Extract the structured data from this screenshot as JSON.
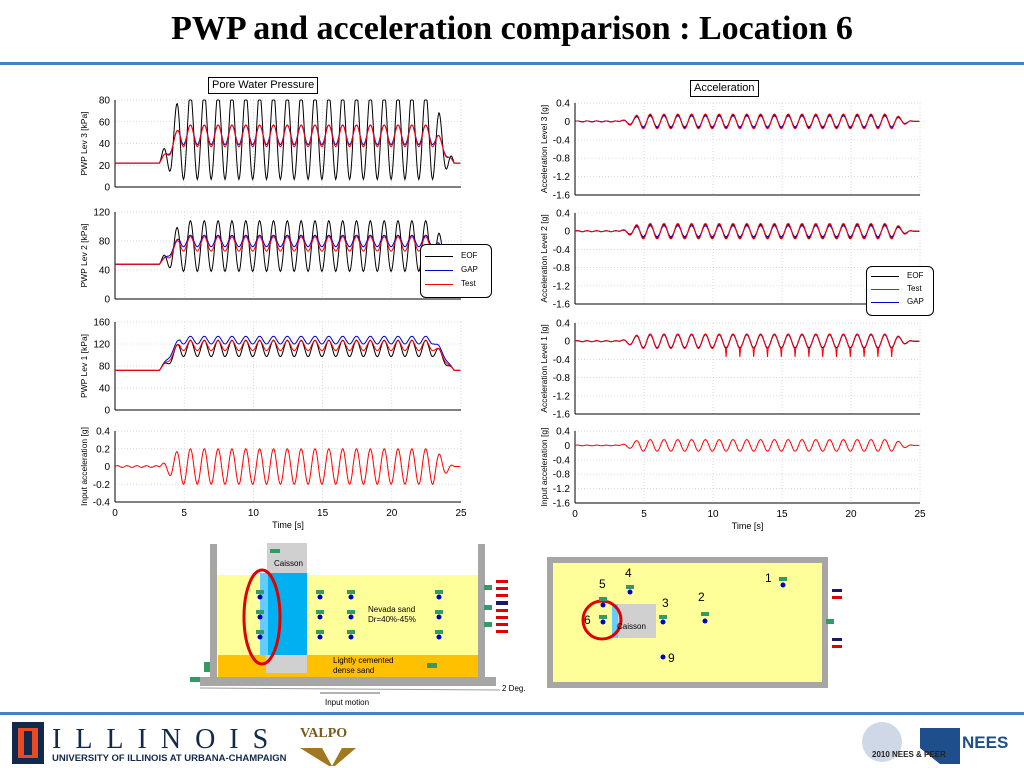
{
  "slide": {
    "title": "PWP and acceleration comparison : Location 6",
    "footer": {
      "illinois": "ILLINOIS",
      "illinois_sub": "UNIVERSITY OF ILLINOIS AT URBANA-CHAMPAIGN",
      "valpo": "VALPO",
      "nees": "NEES",
      "nees_event": "2010 NEES & PEER"
    }
  },
  "colors": {
    "eof": "#000000",
    "gap": "#0000cc",
    "test": "#ff0000",
    "rule": "#4a7fc1",
    "ring": "#e00000"
  },
  "chart_data": [
    {
      "type": "line",
      "title": "Pore Water Pressure",
      "xlabel": "Time [s]",
      "x_ticks": [
        0,
        5,
        10,
        15,
        20,
        25
      ],
      "xlim": [
        0,
        25
      ],
      "legend": {
        "placement": "right",
        "entries": [
          "EOF",
          "GAP",
          "Test"
        ]
      },
      "panels": [
        {
          "ylabel": "PWP Lev 3 [kPa]",
          "ylim": [
            0,
            80
          ],
          "y_ticks": [
            0,
            20,
            40,
            60,
            80
          ],
          "series": [
            {
              "name": "EOF",
              "base": 22,
              "rise": 25,
              "amp": 40,
              "start": 3.2
            },
            {
              "name": "GAP",
              "base": 22,
              "rise": 26,
              "amp": 9,
              "start": 3.2
            },
            {
              "name": "Test",
              "base": 22,
              "rise": 25,
              "amp": 10,
              "start": 3.2
            }
          ]
        },
        {
          "ylabel": "PWP Lev 2 [kPa]",
          "ylim": [
            0,
            120
          ],
          "y_ticks": [
            0,
            40,
            80,
            120
          ],
          "series": [
            {
              "name": "EOF",
              "base": 48,
              "rise": 25,
              "amp": 35,
              "start": 3.2
            },
            {
              "name": "GAP",
              "base": 48,
              "rise": 32,
              "amp": 8,
              "start": 3.2
            },
            {
              "name": "Test",
              "base": 48,
              "rise": 28,
              "amp": 10,
              "start": 3.2
            }
          ]
        },
        {
          "ylabel": "PWP Lev 1 [kPa]",
          "ylim": [
            0,
            160
          ],
          "y_ticks": [
            0,
            40,
            80,
            120,
            160
          ],
          "series": [
            {
              "name": "EOF",
              "base": 72,
              "rise": 40,
              "amp": 15,
              "start": 3.2
            },
            {
              "name": "GAP",
              "base": 72,
              "rise": 55,
              "amp": 7,
              "start": 3.2
            },
            {
              "name": "Test",
              "base": 72,
              "rise": 45,
              "amp": 9,
              "start": 3.2
            }
          ]
        },
        {
          "ylabel": "Input acceleration [g]",
          "ylim": [
            -0.4,
            0.4
          ],
          "y_ticks": [
            -0.4,
            -0.2,
            0,
            0.2,
            0.4
          ],
          "series": [
            {
              "name": "Test",
              "base": 0,
              "rise": 0,
              "amp": 0.2,
              "start": 3.2
            }
          ]
        }
      ]
    },
    {
      "type": "line",
      "title": "Acceleration",
      "xlabel": "Time [s]",
      "x_ticks": [
        0,
        5,
        10,
        15,
        20,
        25
      ],
      "xlim": [
        0,
        25
      ],
      "legend": {
        "placement": "right",
        "entries": [
          "EOF",
          "Test",
          "GAP"
        ]
      },
      "panels": [
        {
          "ylabel": "Acceleration Level 3 [g]",
          "ylim": [
            -1.6,
            0.4
          ],
          "y_ticks": [
            -1.6,
            -1.2,
            -0.8,
            -0.4,
            0,
            0.4
          ],
          "series": [
            {
              "name": "EOF",
              "base": 0,
              "rise": 0,
              "amp": 0.14,
              "start": 3.2
            },
            {
              "name": "GAP",
              "base": 0,
              "rise": 0,
              "amp": 0.12,
              "start": 3.2
            },
            {
              "name": "Test",
              "base": 0,
              "rise": 0,
              "amp": 0.16,
              "start": 3.2
            }
          ]
        },
        {
          "ylabel": "Acceleration Level 2 [g]",
          "ylim": [
            -1.6,
            0.4
          ],
          "y_ticks": [
            -1.6,
            -1.2,
            -0.8,
            -0.4,
            0,
            0.4
          ],
          "series": [
            {
              "name": "EOF",
              "base": 0,
              "rise": 0,
              "amp": 0.15,
              "start": 3.2
            },
            {
              "name": "GAP",
              "base": 0,
              "rise": 0,
              "amp": 0.12,
              "start": 3.2
            },
            {
              "name": "Test",
              "base": 0,
              "rise": 0,
              "amp": 0.17,
              "start": 3.2
            }
          ]
        },
        {
          "ylabel": "Acceleration Level 1 [g]",
          "ylim": [
            -1.6,
            0.4
          ],
          "y_ticks": [
            -1.6,
            -1.2,
            -0.8,
            -0.4,
            0,
            0.4
          ],
          "series": [
            {
              "name": "EOF",
              "base": 0,
              "rise": 0,
              "amp": 0.14,
              "start": 3.2
            },
            {
              "name": "GAP",
              "base": 0,
              "rise": 0,
              "amp": 0.15,
              "start": 3.2
            },
            {
              "name": "Test",
              "base": 0,
              "rise": 0,
              "amp": 0.16,
              "spike": -0.3,
              "start": 3.2
            }
          ]
        },
        {
          "ylabel": "Input acceleration [g]",
          "ylim": [
            -1.6,
            0.4
          ],
          "y_ticks": [
            -1.6,
            -1.2,
            -0.8,
            -0.4,
            0,
            0.4
          ],
          "series": [
            {
              "name": "Test",
              "base": 0,
              "rise": 0,
              "amp": 0.16,
              "start": 3.2
            }
          ]
        }
      ]
    }
  ],
  "diagram_side": {
    "caisson": "Caisson",
    "sand": "Nevada sand\nDr=40%-45%",
    "cemented": "Lightly cemented\ndense sand",
    "deg": "2 Deg.",
    "input": "Input motion"
  },
  "diagram_plan": {
    "caisson": "Caisson",
    "labels": [
      "1",
      "2",
      "3",
      "4",
      "5",
      "6",
      "9"
    ]
  }
}
